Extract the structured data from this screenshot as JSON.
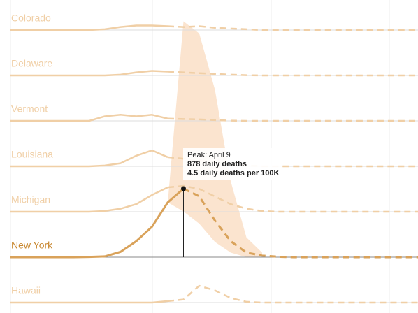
{
  "chart_data": {
    "type": "line",
    "categories": [
      null,
      null,
      null,
      null,
      null,
      null,
      null,
      null,
      null,
      null,
      null,
      null,
      null,
      null,
      null,
      null,
      null,
      null,
      null,
      null,
      null,
      null,
      null,
      null,
      null,
      null,
      null
    ],
    "ylim": [
      0,
      4.5
    ],
    "series": [
      {
        "name": "Colorado",
        "color": "#f0cfa6",
        "values": [
          0,
          0,
          0,
          0,
          0,
          0,
          0.05,
          0.2,
          0.3,
          0.3,
          0.25,
          null,
          null,
          null,
          null,
          null,
          null,
          null,
          null,
          null,
          null,
          null,
          null,
          null,
          null,
          null,
          null
        ],
        "projected": [
          null,
          null,
          null,
          null,
          null,
          null,
          null,
          null,
          null,
          null,
          0.25,
          0.2,
          0.25,
          0.15,
          0.1,
          0.05,
          0,
          0,
          0,
          0,
          0,
          0,
          0,
          0,
          0,
          0,
          0
        ]
      },
      {
        "name": "Delaware",
        "color": "#f0cfa6",
        "values": [
          0,
          0,
          0,
          0,
          0,
          0,
          0,
          0.05,
          0.2,
          0.3,
          0.25,
          null,
          null,
          null,
          null,
          null,
          null,
          null,
          null,
          null,
          null,
          null,
          null,
          null,
          null,
          null,
          null
        ],
        "projected": [
          null,
          null,
          null,
          null,
          null,
          null,
          null,
          null,
          null,
          null,
          0.25,
          0.2,
          0.15,
          0.1,
          0.05,
          0.02,
          0,
          0,
          0,
          0,
          0,
          0,
          0,
          0,
          0,
          0,
          0
        ]
      },
      {
        "name": "Vermont",
        "color": "#f0cfa6",
        "values": [
          0,
          0,
          0,
          0,
          0,
          0,
          0.3,
          0.4,
          0.3,
          0.4,
          0.15,
          null,
          null,
          null,
          null,
          null,
          null,
          null,
          null,
          null,
          null,
          null,
          null,
          null,
          null,
          null,
          null
        ],
        "projected": [
          null,
          null,
          null,
          null,
          null,
          null,
          null,
          null,
          null,
          null,
          0.15,
          0.12,
          0.1,
          0.05,
          0.02,
          0,
          0,
          0,
          0,
          0,
          0,
          0,
          0,
          0,
          0,
          0,
          0
        ]
      },
      {
        "name": "Louisiana",
        "color": "#f0cfa6",
        "values": [
          0,
          0,
          0,
          0,
          0,
          0,
          0.05,
          0.2,
          0.7,
          1.05,
          0.6,
          null,
          null,
          null,
          null,
          null,
          null,
          null,
          null,
          null,
          null,
          null,
          null,
          null,
          null,
          null,
          null
        ],
        "projected": [
          null,
          null,
          null,
          null,
          null,
          null,
          null,
          null,
          null,
          null,
          0.6,
          0.5,
          0.4,
          0.25,
          0.15,
          0.05,
          0,
          0,
          0,
          0,
          0,
          0,
          0,
          0,
          0,
          0,
          0
        ]
      },
      {
        "name": "Michigan",
        "color": "#f0cfa6",
        "values": [
          0,
          0,
          0,
          0,
          0,
          0,
          0.05,
          0.2,
          0.5,
          1.1,
          1.6,
          null,
          null,
          null,
          null,
          null,
          null,
          null,
          null,
          null,
          null,
          null,
          null,
          null,
          null,
          null,
          null
        ],
        "projected": [
          null,
          null,
          null,
          null,
          null,
          null,
          null,
          null,
          null,
          null,
          1.6,
          1.7,
          1.5,
          1.0,
          0.5,
          0.2,
          0.05,
          0,
          0,
          0,
          0,
          0,
          0,
          0,
          0,
          0,
          0
        ]
      },
      {
        "name": "New York",
        "color": "#d9a25a",
        "band_color": "#fbe4cf",
        "values": [
          0,
          0,
          0,
          0,
          0,
          0.02,
          0.05,
          0.35,
          1.05,
          2.0,
          3.6,
          4.5,
          null,
          null,
          null,
          null,
          null,
          null,
          null,
          null,
          null,
          null,
          null,
          null,
          null,
          null,
          null
        ],
        "projected": [
          null,
          null,
          null,
          null,
          null,
          null,
          null,
          null,
          null,
          null,
          null,
          4.5,
          4.0,
          2.4,
          1.05,
          0.3,
          0.1,
          0.03,
          0,
          0,
          0,
          0,
          0,
          0,
          0,
          0,
          0
        ],
        "upper": [
          null,
          null,
          null,
          null,
          null,
          null,
          null,
          null,
          null,
          null,
          3.6,
          15.5,
          14.7,
          11,
          5,
          1.3,
          0.3,
          null,
          null,
          null,
          null,
          null,
          null,
          null,
          null,
          null,
          null
        ],
        "lower": [
          null,
          null,
          null,
          null,
          null,
          null,
          null,
          null,
          null,
          null,
          3.6,
          3.0,
          2.2,
          1.0,
          0.3,
          0,
          0,
          null,
          null,
          null,
          null,
          null,
          null,
          null,
          null,
          null,
          null
        ]
      },
      {
        "name": "Hawaii",
        "color": "#f0cfa6",
        "values": [
          0,
          0,
          0,
          0,
          0,
          0,
          0,
          0,
          0,
          0,
          0.1,
          null,
          null,
          null,
          null,
          null,
          null,
          null,
          null,
          null,
          null,
          null,
          null,
          null,
          null,
          null,
          null
        ],
        "projected": [
          null,
          null,
          null,
          null,
          null,
          null,
          null,
          null,
          null,
          null,
          0.1,
          0.2,
          1.1,
          0.8,
          0.3,
          0.05,
          0,
          0,
          0,
          0,
          0,
          0,
          0,
          0,
          0,
          0,
          0
        ]
      }
    ],
    "annotation": {
      "series": 5,
      "index": 11,
      "peak": "Peak: April 9",
      "deaths": "878 daily deaths",
      "rate": "4.5 daily deaths per 100K"
    }
  }
}
